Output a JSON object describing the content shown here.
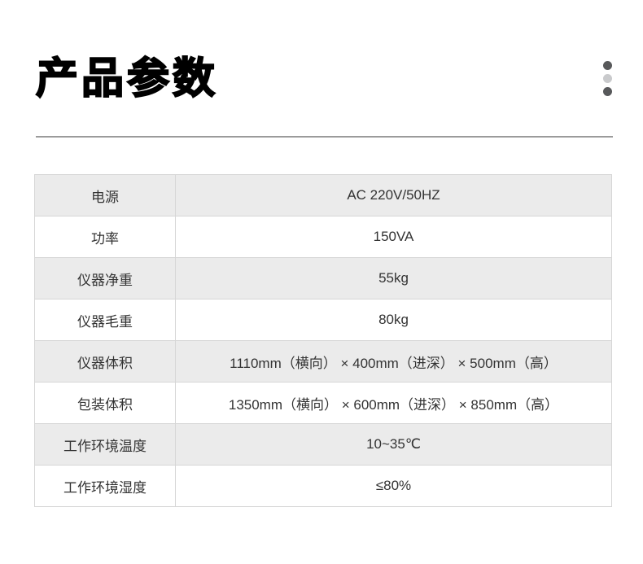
{
  "header": {
    "title": "产品参数",
    "menu_dots_icon": "vertical-three-dots",
    "dot_colors": [
      "#58595b",
      "#c9cacc",
      "#58595b"
    ]
  },
  "colors": {
    "row_alt_bg": "#ebebeb",
    "table_border": "#d6d6d6",
    "table_outer_border": "#c6c6c6",
    "divider": "#9b9b9b",
    "text": "#333333",
    "title": "#000000"
  },
  "table": {
    "rows": [
      {
        "label": "电源",
        "value": "AC 220V/50HZ"
      },
      {
        "label": "功率",
        "value": "150VA"
      },
      {
        "label": "仪器净重",
        "value": "55kg"
      },
      {
        "label": "仪器毛重",
        "value": "80kg"
      },
      {
        "label": "仪器体积",
        "value": "1110mm（横向） ×  400mm（进深） ×  500mm（高）"
      },
      {
        "label": "包装体积",
        "value": "1350mm（横向） ×  600mm（进深） ×  850mm（高）"
      },
      {
        "label": "工作环境温度",
        "value": "10~35℃"
      },
      {
        "label": "工作环境湿度",
        "value": "≤80%"
      }
    ]
  }
}
